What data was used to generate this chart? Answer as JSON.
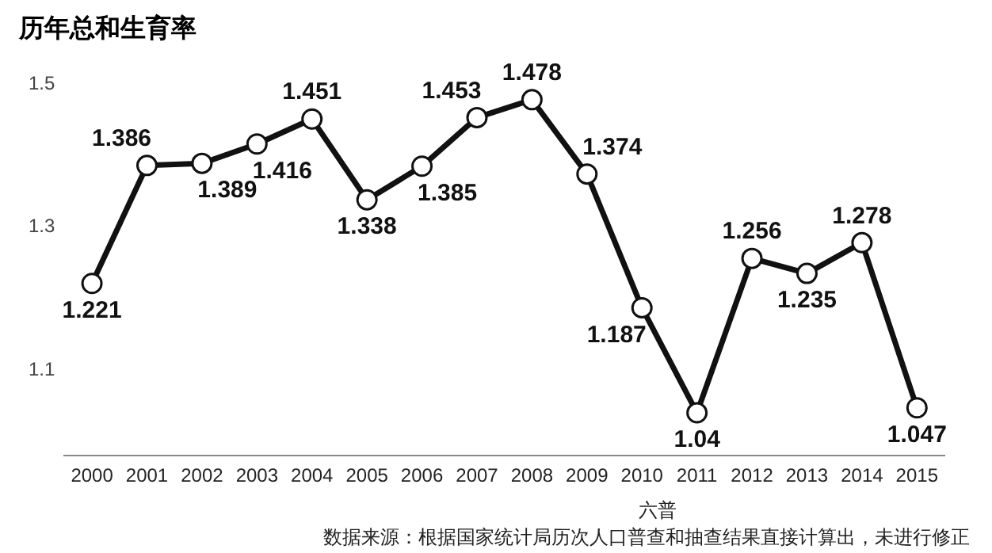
{
  "chart_data": {
    "type": "line",
    "title": "历年总和生育率",
    "categories": [
      "2000",
      "2001",
      "2002",
      "2003",
      "2004",
      "2005",
      "2006",
      "2007",
      "2008",
      "2009",
      "2010",
      "2011",
      "2012",
      "2013",
      "2014",
      "2015"
    ],
    "series": [
      {
        "color": "#111111",
        "values": [
          1.221,
          1.386,
          1.389,
          1.416,
          1.451,
          1.338,
          1.385,
          1.453,
          1.478,
          1.374,
          1.187,
          1.04,
          1.256,
          1.235,
          1.278,
          1.047
        ]
      }
    ],
    "ylim": [
      0.98,
      1.5
    ],
    "yticks": [
      1.1,
      1.3,
      1.5
    ],
    "grid": false,
    "legend": false,
    "marker": "circle",
    "line_style": "solid",
    "data_labels": true,
    "annotations": [
      "六普",
      "数据来源：根据国家统计局历次人口普查和抽查结果直接计算出，未进行修正"
    ]
  }
}
